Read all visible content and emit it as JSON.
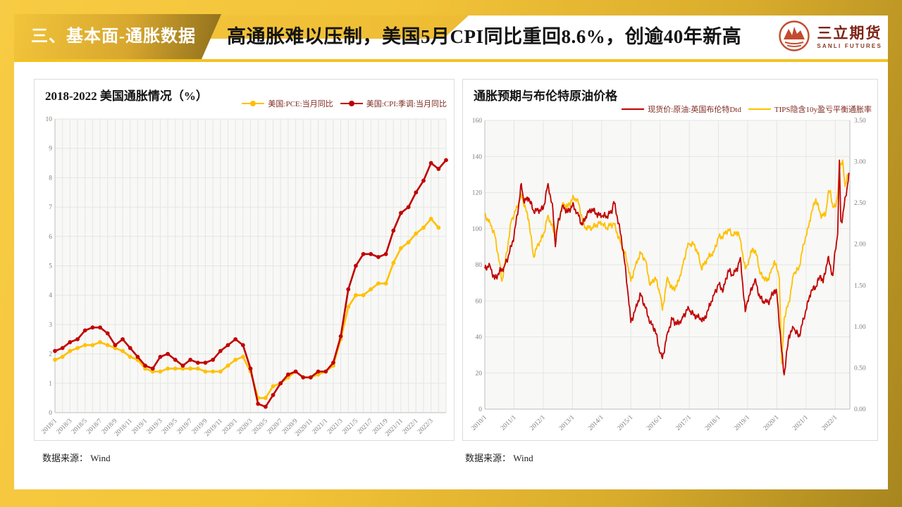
{
  "header": {
    "section_tag": "三、基本面-通胀数据",
    "title": "高通胀难以压制，美国5月CPI同比重回8.6%，创逾40年新高",
    "logo": {
      "name_cn": "三立期货",
      "name_en": "SANLI FUTURES"
    }
  },
  "colors": {
    "series_red": "#C00000",
    "series_yellow": "#FFC000",
    "legend_text": "#7F2A20",
    "gold_accent": "#F4C21F"
  },
  "source_note": "数据来源： Wind",
  "chart_data": [
    {
      "type": "line",
      "title": "2018-2022 美国通胀情况（%）",
      "ylim": [
        0,
        10
      ],
      "ytick_step": 1,
      "grid": true,
      "legend_position": "top-right",
      "categories": [
        "2018/1",
        "2018/2",
        "2018/3",
        "2018/4",
        "2018/5",
        "2018/6",
        "2018/7",
        "2018/8",
        "2018/9",
        "2018/10",
        "2018/11",
        "2018/12",
        "2019/1",
        "2019/2",
        "2019/3",
        "2019/4",
        "2019/5",
        "2019/6",
        "2019/7",
        "2019/8",
        "2019/9",
        "2019/10",
        "2019/11",
        "2019/12",
        "2020/1",
        "2020/2",
        "2020/3",
        "2020/4",
        "2020/5",
        "2020/6",
        "2020/7",
        "2020/8",
        "2020/9",
        "2020/10",
        "2020/11",
        "2020/12",
        "2021/1",
        "2021/2",
        "2021/3",
        "2021/4",
        "2021/5",
        "2021/6",
        "2021/7",
        "2021/8",
        "2021/9",
        "2021/10",
        "2021/11",
        "2021/12",
        "2022/1",
        "2022/2",
        "2022/3",
        "2022/4",
        "2022/5"
      ],
      "x_tick_labels": [
        "2018/1",
        "2018/3",
        "2018/5",
        "2018/7",
        "2018/9",
        "2018/11",
        "2019/1",
        "2019/3",
        "2019/5",
        "2019/7",
        "2019/9",
        "2019/11",
        "2020/1",
        "2020/3",
        "2020/5",
        "2020/7",
        "2020/9",
        "2020/11",
        "2021/1",
        "2021/3",
        "2021/5",
        "2021/7",
        "2021/9",
        "2021/11",
        "2022/1",
        "2022/3"
      ],
      "x_tick_every": 2,
      "series": [
        {
          "name": "美国:PCE:当月同比",
          "color": "#FFC000",
          "marker": "circle",
          "values": [
            1.8,
            1.9,
            2.1,
            2.2,
            2.3,
            2.3,
            2.4,
            2.3,
            2.2,
            2.1,
            1.9,
            1.8,
            1.5,
            1.4,
            1.4,
            1.5,
            1.5,
            1.5,
            1.5,
            1.5,
            1.4,
            1.4,
            1.4,
            1.6,
            1.8,
            1.9,
            1.4,
            0.5,
            0.5,
            0.9,
            1.0,
            1.2,
            1.4,
            1.2,
            1.2,
            1.3,
            1.4,
            1.6,
            2.5,
            3.6,
            4.0,
            4.0,
            4.2,
            4.4,
            4.4,
            5.1,
            5.6,
            5.8,
            6.1,
            6.3,
            6.6,
            6.3
          ]
        },
        {
          "name": "美国:CPI:季调:当月同比",
          "color": "#C00000",
          "marker": "circle",
          "values": [
            2.1,
            2.2,
            2.4,
            2.5,
            2.8,
            2.9,
            2.9,
            2.7,
            2.3,
            2.5,
            2.2,
            1.9,
            1.6,
            1.5,
            1.9,
            2.0,
            1.8,
            1.6,
            1.8,
            1.7,
            1.7,
            1.8,
            2.1,
            2.3,
            2.5,
            2.3,
            1.5,
            0.3,
            0.2,
            0.6,
            1.0,
            1.3,
            1.4,
            1.2,
            1.2,
            1.4,
            1.4,
            1.7,
            2.6,
            4.2,
            5.0,
            5.4,
            5.4,
            5.3,
            5.4,
            6.2,
            6.8,
            7.0,
            7.5,
            7.9,
            8.5,
            8.3,
            8.6
          ]
        }
      ]
    },
    {
      "type": "line",
      "title": "通胀预期与布伦特原油价格",
      "grid": true,
      "legend_position": "top-right",
      "x_domain_months": [
        0,
        150
      ],
      "x_tick_labels": [
        "2010/1",
        "2011/1",
        "2012/1",
        "2013/1",
        "2014/1",
        "2015/1",
        "2016/1",
        "2017/1",
        "2018/1",
        "2019/1",
        "2020/1",
        "2021/1",
        "2022/1"
      ],
      "x_tick_month_step": 12,
      "left_axis": {
        "range": [
          0,
          160
        ],
        "step": 20
      },
      "right_axis": {
        "range": [
          0,
          3.5
        ],
        "step": 0.5,
        "decimals": 2
      },
      "series": [
        {
          "name": "现货价:原油:英国布伦特Dtd",
          "color": "#C00000",
          "axis": "left",
          "points": [
            [
              0,
              78
            ],
            [
              2,
              80
            ],
            [
              4,
              72
            ],
            [
              6,
              76
            ],
            [
              8,
              79
            ],
            [
              10,
              86
            ],
            [
              12,
              96
            ],
            [
              14,
              114
            ],
            [
              15,
              125
            ],
            [
              16,
              115
            ],
            [
              18,
              117
            ],
            [
              20,
              110
            ],
            [
              22,
              110
            ],
            [
              24,
              111
            ],
            [
              26,
              125
            ],
            [
              28,
              110
            ],
            [
              29,
              90
            ],
            [
              30,
              103
            ],
            [
              32,
              113
            ],
            [
              34,
              109
            ],
            [
              36,
              113
            ],
            [
              38,
              109
            ],
            [
              40,
              102
            ],
            [
              42,
              108
            ],
            [
              44,
              111
            ],
            [
              46,
              108
            ],
            [
              48,
              107
            ],
            [
              50,
              107
            ],
            [
              52,
              109
            ],
            [
              53,
              115
            ],
            [
              55,
              103
            ],
            [
              57,
              87
            ],
            [
              59,
              62
            ],
            [
              60,
              48
            ],
            [
              62,
              56
            ],
            [
              64,
              64
            ],
            [
              66,
              56
            ],
            [
              68,
              48
            ],
            [
              70,
              44
            ],
            [
              72,
              31
            ],
            [
              73,
              28
            ],
            [
              75,
              42
            ],
            [
              77,
              50
            ],
            [
              79,
              47
            ],
            [
              81,
              50
            ],
            [
              83,
              55
            ],
            [
              84,
              55
            ],
            [
              86,
              52
            ],
            [
              88,
              51
            ],
            [
              90,
              49
            ],
            [
              92,
              56
            ],
            [
              94,
              63
            ],
            [
              96,
              69
            ],
            [
              98,
              66
            ],
            [
              100,
              77
            ],
            [
              102,
              74
            ],
            [
              104,
              79
            ],
            [
              105,
              84
            ],
            [
              107,
              54
            ],
            [
              108,
              60
            ],
            [
              111,
              72
            ],
            [
              113,
              62
            ],
            [
              115,
              59
            ],
            [
              117,
              60
            ],
            [
              119,
              66
            ],
            [
              120,
              64
            ],
            [
              122,
              32
            ],
            [
              123,
              19
            ],
            [
              125,
              41
            ],
            [
              127,
              45
            ],
            [
              129,
              40
            ],
            [
              131,
              50
            ],
            [
              132,
              55
            ],
            [
              134,
              65
            ],
            [
              136,
              68
            ],
            [
              138,
              74
            ],
            [
              139,
              70
            ],
            [
              141,
              84
            ],
            [
              143,
              74
            ],
            [
              144,
              88
            ],
            [
              145,
              97
            ],
            [
              145.7,
              138
            ],
            [
              146.3,
              104
            ],
            [
              147,
              106
            ],
            [
              147.7,
              113
            ],
            [
              148.3,
              118
            ],
            [
              149,
              124
            ],
            [
              149.6,
              131
            ]
          ]
        },
        {
          "name": "TIPS隐含10y盈亏平衡通胀率",
          "color": "#FFC000",
          "axis": "right",
          "points": [
            [
              0,
              2.35
            ],
            [
              2,
              2.27
            ],
            [
              4,
              2.12
            ],
            [
              6,
              1.78
            ],
            [
              7,
              1.55
            ],
            [
              9,
              1.9
            ],
            [
              11,
              2.3
            ],
            [
              12,
              2.35
            ],
            [
              15,
              2.6
            ],
            [
              18,
              2.3
            ],
            [
              20,
              1.85
            ],
            [
              22,
              2.0
            ],
            [
              24,
              2.1
            ],
            [
              26,
              2.35
            ],
            [
              29,
              2.1
            ],
            [
              32,
              2.5
            ],
            [
              34,
              2.45
            ],
            [
              36,
              2.55
            ],
            [
              38,
              2.55
            ],
            [
              41,
              2.2
            ],
            [
              44,
              2.2
            ],
            [
              47,
              2.25
            ],
            [
              48,
              2.25
            ],
            [
              50,
              2.2
            ],
            [
              53,
              2.25
            ],
            [
              56,
              2.0
            ],
            [
              58,
              1.85
            ],
            [
              59,
              1.7
            ],
            [
              60,
              1.55
            ],
            [
              62,
              1.75
            ],
            [
              64,
              1.9
            ],
            [
              66,
              1.8
            ],
            [
              68,
              1.5
            ],
            [
              70,
              1.6
            ],
            [
              72,
              1.4
            ],
            [
              73,
              1.2
            ],
            [
              75,
              1.6
            ],
            [
              77,
              1.45
            ],
            [
              79,
              1.5
            ],
            [
              81,
              1.7
            ],
            [
              83,
              1.95
            ],
            [
              84,
              2.0
            ],
            [
              86,
              2.0
            ],
            [
              88,
              1.85
            ],
            [
              89,
              1.7
            ],
            [
              92,
              1.85
            ],
            [
              94,
              1.9
            ],
            [
              96,
              2.08
            ],
            [
              98,
              2.1
            ],
            [
              100,
              2.18
            ],
            [
              102,
              2.1
            ],
            [
              104,
              2.15
            ],
            [
              105,
              2.05
            ],
            [
              107,
              1.7
            ],
            [
              108,
              1.75
            ],
            [
              110,
              1.95
            ],
            [
              112,
              1.85
            ],
            [
              113,
              1.65
            ],
            [
              116,
              1.55
            ],
            [
              118,
              1.7
            ],
            [
              119,
              1.8
            ],
            [
              120,
              1.7
            ],
            [
              121,
              1.6
            ],
            [
              122,
              0.55
            ],
            [
              123,
              1.1
            ],
            [
              125,
              1.3
            ],
            [
              127,
              1.65
            ],
            [
              129,
              1.7
            ],
            [
              131,
              2.0
            ],
            [
              132,
              2.1
            ],
            [
              133,
              2.2
            ],
            [
              134,
              2.35
            ],
            [
              136,
              2.55
            ],
            [
              138,
              2.35
            ],
            [
              140,
              2.35
            ],
            [
              141,
              2.6
            ],
            [
              142,
              2.65
            ],
            [
              143,
              2.45
            ],
            [
              144,
              2.45
            ],
            [
              145,
              2.6
            ],
            [
              146,
              2.95
            ],
            [
              147,
              3.02
            ],
            [
              148,
              2.7
            ],
            [
              149,
              2.85
            ]
          ]
        }
      ]
    }
  ]
}
